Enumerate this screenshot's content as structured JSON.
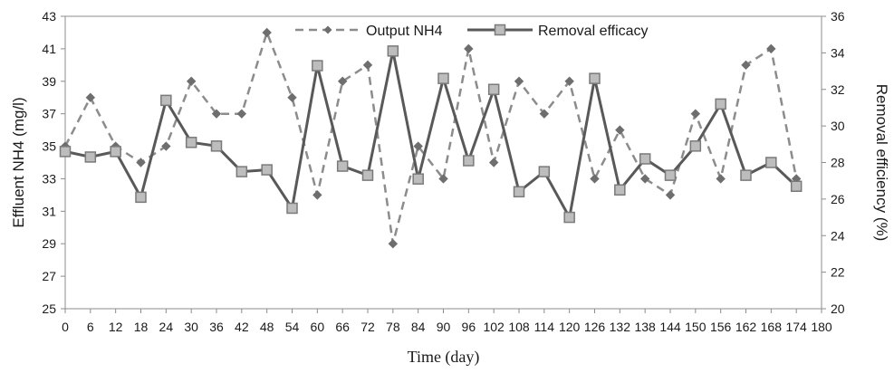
{
  "chart_data": {
    "type": "line",
    "xlabel": "Time (day)",
    "ylabel_left": "Effluent NH4 (mg/l)",
    "ylabel_right": "Removal efficiency (%)",
    "x_ticks": [
      0,
      6,
      12,
      18,
      24,
      30,
      36,
      42,
      48,
      54,
      60,
      66,
      72,
      78,
      84,
      90,
      96,
      102,
      108,
      114,
      120,
      126,
      132,
      138,
      144,
      150,
      156,
      162,
      168,
      174,
      180
    ],
    "ylim_left": [
      25,
      43
    ],
    "y_ticks_left": [
      25,
      27,
      29,
      31,
      33,
      35,
      37,
      39,
      41,
      43
    ],
    "ylim_right": [
      20,
      36
    ],
    "y_ticks_right": [
      20,
      22,
      24,
      26,
      28,
      30,
      32,
      34,
      36
    ],
    "grid": false,
    "legend_position": "top",
    "series": [
      {
        "name": "Output NH4",
        "axis": "left",
        "style": "dashed",
        "marker": "diamond",
        "color": "#8c8c8c",
        "x": [
          0,
          6,
          12,
          18,
          24,
          30,
          36,
          42,
          48,
          54,
          60,
          66,
          72,
          78,
          84,
          90,
          96,
          102,
          108,
          114,
          120,
          126,
          132,
          138,
          144,
          150,
          156,
          162,
          168,
          174
        ],
        "values": [
          35,
          38,
          35,
          34,
          35,
          39,
          37,
          37,
          42,
          38,
          32,
          39,
          40,
          29,
          35,
          33,
          41,
          34,
          39,
          37,
          39,
          33,
          36,
          33,
          32,
          37,
          33,
          40,
          41,
          33
        ]
      },
      {
        "name": "Removal efficacy",
        "axis": "right",
        "style": "solid",
        "marker": "square",
        "color": "#595959",
        "x": [
          0,
          6,
          12,
          18,
          24,
          30,
          36,
          42,
          48,
          54,
          60,
          66,
          72,
          78,
          84,
          90,
          96,
          102,
          108,
          114,
          120,
          126,
          132,
          138,
          144,
          150,
          156,
          162,
          168,
          174
        ],
        "values": [
          28.6,
          28.3,
          28.6,
          26.1,
          31.4,
          29.1,
          28.9,
          27.5,
          27.6,
          25.5,
          33.3,
          27.8,
          27.3,
          34.1,
          27.1,
          32.6,
          28.1,
          32.0,
          26.4,
          27.5,
          25.0,
          32.6,
          26.5,
          28.2,
          27.3,
          28.9,
          31.2,
          27.3,
          28.0,
          26.7
        ]
      }
    ]
  }
}
